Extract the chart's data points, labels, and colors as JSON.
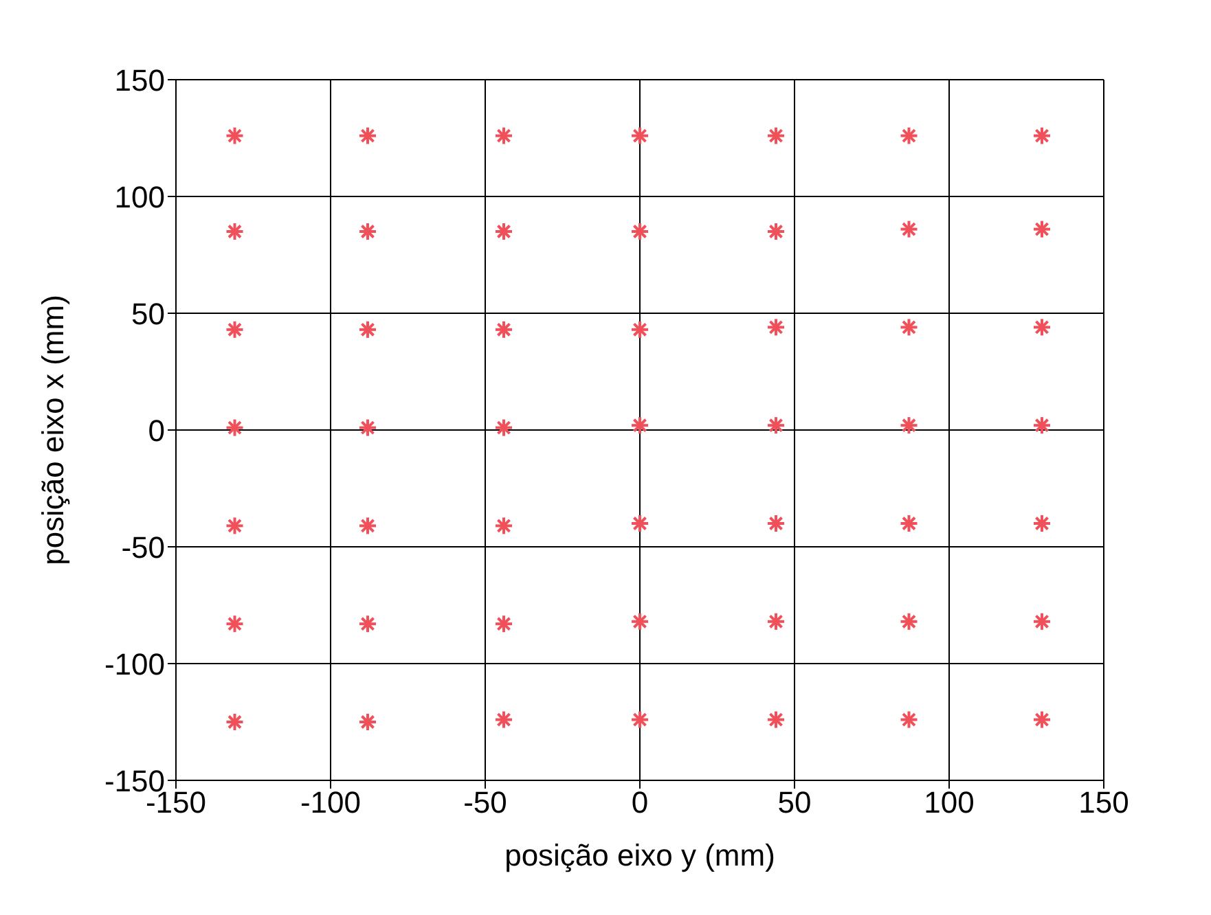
{
  "chart_data": {
    "type": "scatter",
    "xlabel": "posição eixo y  (mm)",
    "ylabel": "posição eixo x  (mm)",
    "x": [
      -131,
      -88,
      -44,
      0,
      44,
      87,
      130,
      -131,
      -88,
      -44,
      0,
      44,
      87,
      130,
      -131,
      -88,
      -44,
      0,
      44,
      87,
      130,
      -131,
      -88,
      -44,
      0,
      44,
      87,
      130,
      -131,
      -88,
      -44,
      0,
      44,
      87,
      130,
      -131,
      -88,
      -44,
      0,
      44,
      87,
      130,
      -131,
      -88,
      -44,
      0,
      44,
      87,
      130
    ],
    "series": [
      {
        "color": "#f0505a",
        "values": [
          126,
          126,
          126,
          126,
          126,
          126,
          126,
          85,
          85,
          85,
          85,
          85,
          86,
          86,
          43,
          43,
          43,
          43,
          44,
          44,
          44,
          1,
          1,
          1,
          2,
          2,
          2,
          2,
          -41,
          -41,
          -41,
          -40,
          -40,
          -40,
          -40,
          -83,
          -83,
          -83,
          -82,
          -82,
          -82,
          -82,
          -125,
          -125,
          -124,
          -124,
          -124,
          -124,
          -124
        ]
      }
    ],
    "xlim": [
      -150,
      150
    ],
    "ylim": [
      -150,
      150
    ],
    "xticks": [
      -150,
      -100,
      -50,
      0,
      50,
      100,
      150
    ],
    "yticks": [
      -150,
      -100,
      -50,
      0,
      50,
      100,
      150
    ],
    "grid": true,
    "marker": "cross"
  }
}
